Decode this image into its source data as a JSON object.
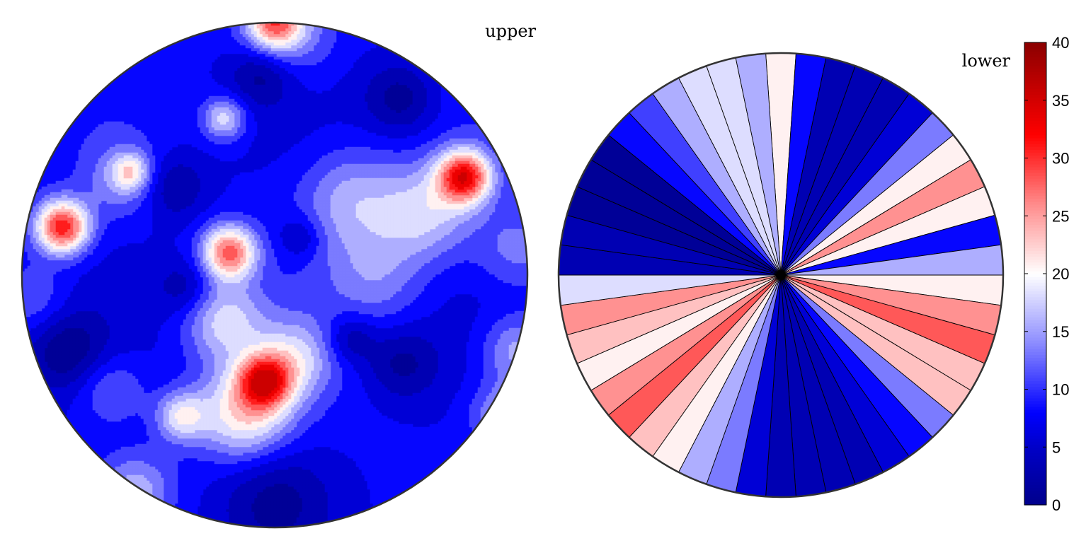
{
  "chart_data": {
    "type": "heatmap",
    "projection": "pole-figure-disc",
    "panels": [
      {
        "label": "upper",
        "field": "smooth-random-contours"
      },
      {
        "label": "lower",
        "field": "radial-sector-contours"
      }
    ],
    "colorbar": {
      "range": [
        0,
        40
      ],
      "ticks": [
        0,
        5,
        10,
        15,
        20,
        25,
        30,
        35,
        40
      ],
      "tick_labels": [
        "0",
        "5",
        "10",
        "15",
        "20",
        "25",
        "30",
        "35",
        "40"
      ],
      "colormap": "blue-white-red",
      "colormap_stops": [
        {
          "value": 0,
          "color": "#00008B"
        },
        {
          "value": 5,
          "color": "#0000C8"
        },
        {
          "value": 8,
          "color": "#0000FF"
        },
        {
          "value": 14,
          "color": "#8C8CFF"
        },
        {
          "value": 20,
          "color": "#FFFFFF"
        },
        {
          "value": 26,
          "color": "#FF8C8C"
        },
        {
          "value": 32,
          "color": "#FF0000"
        },
        {
          "value": 40,
          "color": "#8B0000"
        }
      ]
    },
    "contour_levels": [
      2,
      4.5,
      7,
      9.5,
      12,
      14.5,
      17,
      19.5,
      22,
      24.5,
      27,
      29.5,
      32,
      34.5
    ],
    "upper_peaks": [
      {
        "value": 31,
        "location": "left edge"
      },
      {
        "value": 31,
        "location": "upper right"
      },
      {
        "value": 27,
        "location": "center"
      },
      {
        "value": 26,
        "location": "lower center"
      },
      {
        "value": 24,
        "location": "top rim"
      }
    ],
    "lower_sector_values": [
      21,
      8,
      2.5,
      3,
      2.5,
      6,
      14,
      21,
      25,
      20,
      8,
      15,
      20,
      26,
      28,
      22,
      22,
      14,
      9,
      5,
      2,
      2,
      3,
      2,
      6,
      12,
      15,
      21,
      23,
      27,
      26,
      20,
      23,
      26,
      17,
      4,
      2,
      1,
      1,
      1,
      7,
      11,
      16,
      19,
      18,
      16
    ]
  }
}
